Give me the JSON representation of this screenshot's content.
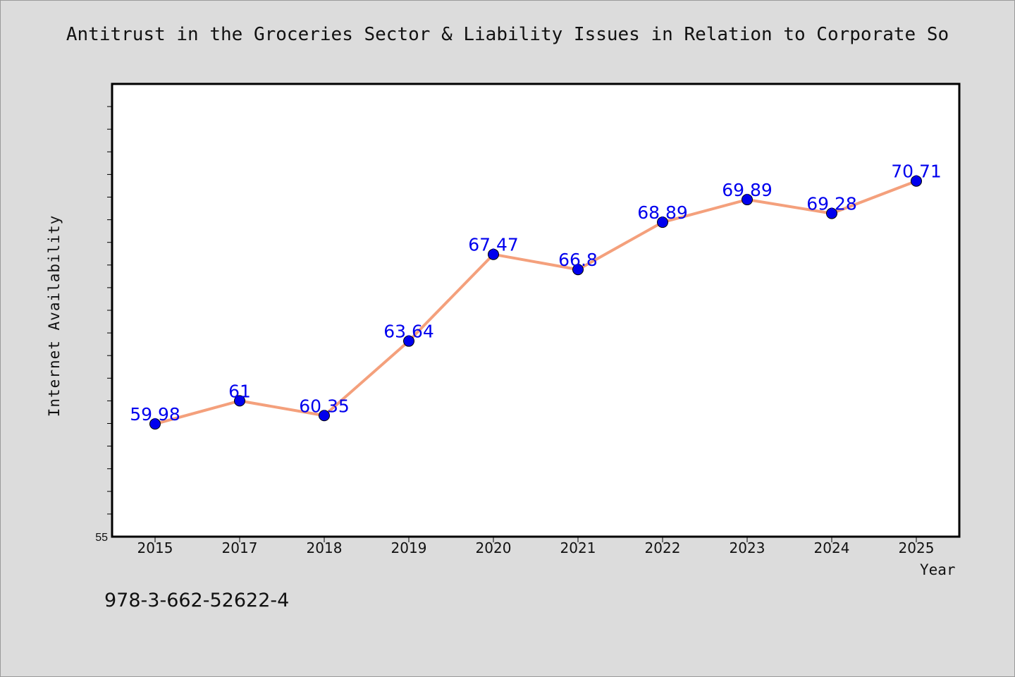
{
  "chart_data": {
    "type": "line",
    "title": "Antitrust in the Groceries Sector & Liability Issues in Relation to Corporate So",
    "xlabel": "Year",
    "ylabel": "Internet Availability",
    "categories": [
      "2015",
      "2017",
      "2018",
      "2019",
      "2020",
      "2021",
      "2022",
      "2023",
      "2024",
      "2025"
    ],
    "series": [
      {
        "values": [
          59.98,
          61,
          60.35,
          63.64,
          67.47,
          66.8,
          68.89,
          69.89,
          69.28,
          70.71
        ],
        "labels": [
          "59.98",
          "61",
          "60.35",
          "63.64",
          "67.47",
          "66.8",
          "68.89",
          "69.89",
          "69.28",
          "70.71"
        ]
      }
    ],
    "ylim": [
      55,
      75
    ],
    "y_tick_labels": [
      "55"
    ],
    "grid": false,
    "colors": {
      "line": "#f4a07c",
      "marker": "#0000ee",
      "label": "#0000ee",
      "background": "#dcdcdc",
      "plot_background": "#ffffff"
    }
  },
  "footnote": "978-3-662-52622-4"
}
